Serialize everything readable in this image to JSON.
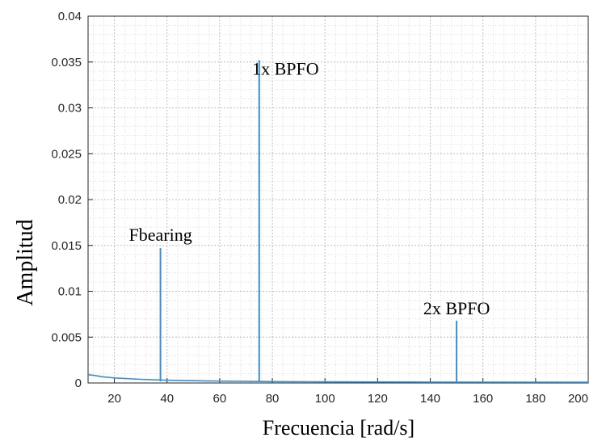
{
  "chart_data": {
    "type": "line",
    "xlabel": "Frecuencia [rad/s]",
    "ylabel": "Amplitud",
    "xlim": [
      10,
      200
    ],
    "ylim": [
      0,
      0.04
    ],
    "x_ticks": [
      "20",
      "40",
      "60",
      "80",
      "100",
      "120",
      "140",
      "160",
      "180",
      "200"
    ],
    "y_ticks": [
      "0",
      "0.005",
      "0.01",
      "0.015",
      "0.02",
      "0.025",
      "0.03",
      "0.035",
      "0.04"
    ],
    "grid": "major and minor (dotted)",
    "series": [
      {
        "color": "#3a8fd0",
        "baseline": [
          {
            "x": 10,
            "y": 0.0009
          },
          {
            "x": 12,
            "y": 0.00085
          },
          {
            "x": 15,
            "y": 0.0007
          },
          {
            "x": 20,
            "y": 0.00055
          },
          {
            "x": 30,
            "y": 0.0004
          },
          {
            "x": 40,
            "y": 0.0003
          },
          {
            "x": 60,
            "y": 0.0002
          },
          {
            "x": 80,
            "y": 0.00015
          },
          {
            "x": 100,
            "y": 0.00012
          },
          {
            "x": 140,
            "y": 0.0001
          },
          {
            "x": 200,
            "y": 8e-05
          }
        ],
        "peaks": [
          {
            "x": 37.5,
            "y": 0.0147
          },
          {
            "x": 75,
            "y": 0.0352
          },
          {
            "x": 150,
            "y": 0.0068
          }
        ]
      }
    ],
    "annotations": [
      {
        "text": "Fbearing",
        "x": 37.5,
        "y": 0.0155
      },
      {
        "text": "1x BPFO",
        "x": 85,
        "y": 0.0336
      },
      {
        "text": "2x BPFO",
        "x": 150,
        "y": 0.0075
      }
    ]
  }
}
